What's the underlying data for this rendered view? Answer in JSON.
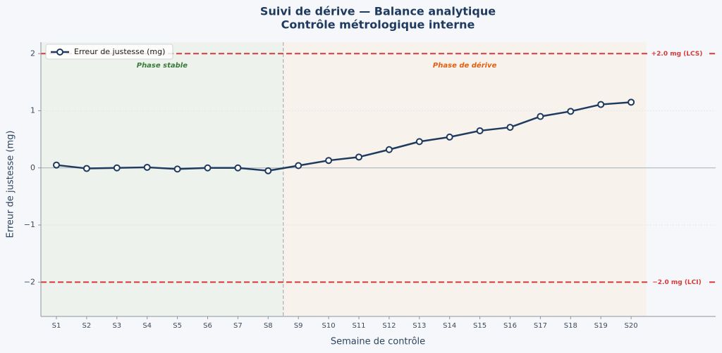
{
  "chart_data": {
    "type": "line",
    "title": "Suivi de dérive — Balance analytique",
    "subtitle": "Contrôle métrologique interne",
    "x_label": "Semaine de contrôle",
    "y_label": "Erreur de justesse (mg)",
    "categories": [
      "S1",
      "S2",
      "S3",
      "S4",
      "S5",
      "S6",
      "S7",
      "S8",
      "S9",
      "S10",
      "S11",
      "S12",
      "S13",
      "S14",
      "S15",
      "S16",
      "S17",
      "S18",
      "S19",
      "S20"
    ],
    "series": [
      {
        "name": "Erreur de justesse (mg)",
        "color": "#1f3a5f",
        "values": [
          0.05,
          -0.01,
          0.0,
          0.01,
          -0.02,
          0.0,
          0.0,
          -0.05,
          0.04,
          0.13,
          0.19,
          0.32,
          0.46,
          0.54,
          0.65,
          0.71,
          0.9,
          0.99,
          1.11,
          1.15
        ]
      }
    ],
    "ylim": [
      -2.6,
      2.2
    ],
    "yticks": [
      {
        "value": -2,
        "label": "−2"
      },
      {
        "value": -1,
        "label": "−1"
      },
      0,
      1,
      2
    ],
    "grid": true,
    "legend": "upper left",
    "reference_lines": [
      {
        "value": 2,
        "label": "+2.0 mg (LCS)",
        "color": "#d63a3a"
      },
      {
        "value": -2,
        "label": "−2.0 mg (LCI)",
        "color": "#d63a3a"
      }
    ],
    "phases": [
      {
        "label": "Phase stable",
        "start": 0,
        "end": 7,
        "color": "#3a7a3a",
        "fill": "#edf3ec"
      },
      {
        "label": "Phase de dérive",
        "start": 8,
        "end": 19,
        "color": "#e0600f",
        "fill": "#f8f2ec"
      }
    ]
  }
}
